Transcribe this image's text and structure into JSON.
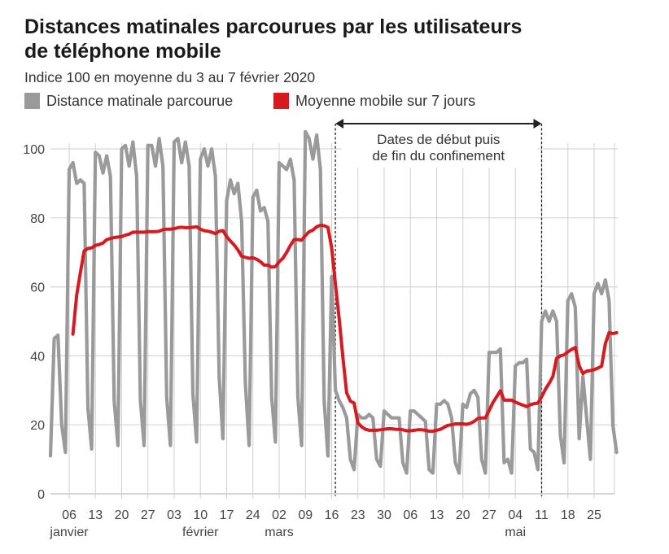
{
  "chart_data": {
    "type": "line",
    "title": "Distances matinales parcourues par les utilisateurs de téléphone mobile",
    "title_lines": [
      "Distances matinales parcourues par les utilisateurs",
      "de téléphone mobile"
    ],
    "subtitle": "Indice 100 en moyenne du 3 au 7 février 2020",
    "xlabel": "",
    "ylabel": "",
    "ylim": [
      0,
      100
    ],
    "yticks": [
      0,
      20,
      40,
      60,
      80,
      100
    ],
    "grid": true,
    "legend_position": "top-left",
    "x_ticks": [
      {
        "date": "2020-01-06",
        "label": "06",
        "month": "janvier"
      },
      {
        "date": "2020-01-13",
        "label": "13",
        "month": ""
      },
      {
        "date": "2020-01-20",
        "label": "20",
        "month": ""
      },
      {
        "date": "2020-01-27",
        "label": "27",
        "month": ""
      },
      {
        "date": "2020-02-03",
        "label": "03",
        "month": ""
      },
      {
        "date": "2020-02-10",
        "label": "10",
        "month": "février"
      },
      {
        "date": "2020-02-17",
        "label": "17",
        "month": ""
      },
      {
        "date": "2020-02-24",
        "label": "24",
        "month": ""
      },
      {
        "date": "2020-03-02",
        "label": "02",
        "month": "mars"
      },
      {
        "date": "2020-03-09",
        "label": "09",
        "month": ""
      },
      {
        "date": "2020-03-16",
        "label": "16",
        "month": ""
      },
      {
        "date": "2020-03-23",
        "label": "23",
        "month": ""
      },
      {
        "date": "2020-03-30",
        "label": "30",
        "month": ""
      },
      {
        "date": "2020-04-06",
        "label": "06",
        "month": ""
      },
      {
        "date": "2020-04-13",
        "label": "13",
        "month": ""
      },
      {
        "date": "2020-04-20",
        "label": "20",
        "month": ""
      },
      {
        "date": "2020-04-27",
        "label": "27",
        "month": ""
      },
      {
        "date": "2020-05-04",
        "label": "04",
        "month": "mai"
      },
      {
        "date": "2020-05-11",
        "label": "11",
        "month": ""
      },
      {
        "date": "2020-05-18",
        "label": "18",
        "month": ""
      },
      {
        "date": "2020-05-25",
        "label": "25",
        "month": ""
      }
    ],
    "x": [
      "2020-01-01",
      "2020-01-02",
      "2020-01-03",
      "2020-01-04",
      "2020-01-05",
      "2020-01-06",
      "2020-01-07",
      "2020-01-08",
      "2020-01-09",
      "2020-01-10",
      "2020-01-11",
      "2020-01-12",
      "2020-01-13",
      "2020-01-14",
      "2020-01-15",
      "2020-01-16",
      "2020-01-17",
      "2020-01-18",
      "2020-01-19",
      "2020-01-20",
      "2020-01-21",
      "2020-01-22",
      "2020-01-23",
      "2020-01-24",
      "2020-01-25",
      "2020-01-26",
      "2020-01-27",
      "2020-01-28",
      "2020-01-29",
      "2020-01-30",
      "2020-01-31",
      "2020-02-01",
      "2020-02-02",
      "2020-02-03",
      "2020-02-04",
      "2020-02-05",
      "2020-02-06",
      "2020-02-07",
      "2020-02-08",
      "2020-02-09",
      "2020-02-10",
      "2020-02-11",
      "2020-02-12",
      "2020-02-13",
      "2020-02-14",
      "2020-02-15",
      "2020-02-16",
      "2020-02-17",
      "2020-02-18",
      "2020-02-19",
      "2020-02-20",
      "2020-02-21",
      "2020-02-22",
      "2020-02-23",
      "2020-02-24",
      "2020-02-25",
      "2020-02-26",
      "2020-02-27",
      "2020-02-28",
      "2020-02-29",
      "2020-03-01",
      "2020-03-02",
      "2020-03-03",
      "2020-03-04",
      "2020-03-05",
      "2020-03-06",
      "2020-03-07",
      "2020-03-08",
      "2020-03-09",
      "2020-03-10",
      "2020-03-11",
      "2020-03-12",
      "2020-03-13",
      "2020-03-14",
      "2020-03-15",
      "2020-03-16",
      "2020-03-17",
      "2020-03-18",
      "2020-03-19",
      "2020-03-20",
      "2020-03-21",
      "2020-03-22",
      "2020-03-23",
      "2020-03-24",
      "2020-03-25",
      "2020-03-26",
      "2020-03-27",
      "2020-03-28",
      "2020-03-29",
      "2020-03-30",
      "2020-03-31",
      "2020-04-01",
      "2020-04-02",
      "2020-04-03",
      "2020-04-04",
      "2020-04-05",
      "2020-04-06",
      "2020-04-07",
      "2020-04-08",
      "2020-04-09",
      "2020-04-10",
      "2020-04-11",
      "2020-04-12",
      "2020-04-13",
      "2020-04-14",
      "2020-04-15",
      "2020-04-16",
      "2020-04-17",
      "2020-04-18",
      "2020-04-19",
      "2020-04-20",
      "2020-04-21",
      "2020-04-22",
      "2020-04-23",
      "2020-04-24",
      "2020-04-25",
      "2020-04-26",
      "2020-04-27",
      "2020-04-28",
      "2020-04-29",
      "2020-04-30",
      "2020-05-01",
      "2020-05-02",
      "2020-05-03",
      "2020-05-04",
      "2020-05-05",
      "2020-05-06",
      "2020-05-07",
      "2020-05-08",
      "2020-05-09",
      "2020-05-10",
      "2020-05-11",
      "2020-05-12",
      "2020-05-13",
      "2020-05-14",
      "2020-05-15",
      "2020-05-16",
      "2020-05-17",
      "2020-05-18",
      "2020-05-19",
      "2020-05-20",
      "2020-05-21",
      "2020-05-22",
      "2020-05-23",
      "2020-05-24",
      "2020-05-25",
      "2020-05-26",
      "2020-05-27",
      "2020-05-28",
      "2020-05-29",
      "2020-05-30",
      "2020-05-31"
    ],
    "series": [
      {
        "name": "Distance matinale parcourue",
        "color": "#9a9a9a",
        "values": [
          11,
          45,
          46,
          20,
          12,
          94,
          96,
          90,
          91,
          90,
          25,
          13,
          99,
          98,
          93,
          98,
          92,
          27,
          14,
          100,
          101,
          95,
          102,
          92,
          27,
          14,
          101,
          101,
          95,
          103,
          95,
          28,
          14,
          102,
          103,
          96,
          102,
          95,
          29,
          15,
          97,
          100,
          95,
          100,
          92,
          34,
          16,
          85,
          91,
          87,
          90,
          79,
          32,
          14,
          86,
          88,
          82,
          83,
          79,
          28,
          15,
          96,
          95,
          94,
          97,
          91,
          28,
          14,
          105,
          103,
          97,
          104,
          94,
          27,
          11,
          63,
          30,
          27,
          25,
          22,
          10,
          7,
          23,
          22,
          22,
          23,
          22,
          10,
          8,
          24,
          23,
          22,
          22,
          22,
          9,
          6,
          24,
          24,
          23,
          22,
          21,
          7,
          6,
          26,
          26,
          27,
          26,
          22,
          9,
          6,
          26,
          25,
          29,
          30,
          28,
          10,
          6,
          41,
          41,
          41,
          42,
          9,
          10,
          6,
          37,
          38,
          38,
          39,
          13,
          12,
          7,
          50,
          53,
          50,
          53,
          50,
          17,
          9,
          56,
          58,
          54,
          16,
          34,
          22,
          10,
          58,
          61,
          58,
          62,
          56,
          20,
          12
        ]
      },
      {
        "name": "Moyenne mobile sur 7 jours",
        "color": "#d71920",
        "rolling_window_days": 7,
        "of_series": "Distance matinale parcourue"
      }
    ],
    "annotation": {
      "lines": [
        "Dates de début puis",
        "de fin du confinement"
      ],
      "start_date": "2020-03-17",
      "end_date": "2020-05-11"
    }
  }
}
